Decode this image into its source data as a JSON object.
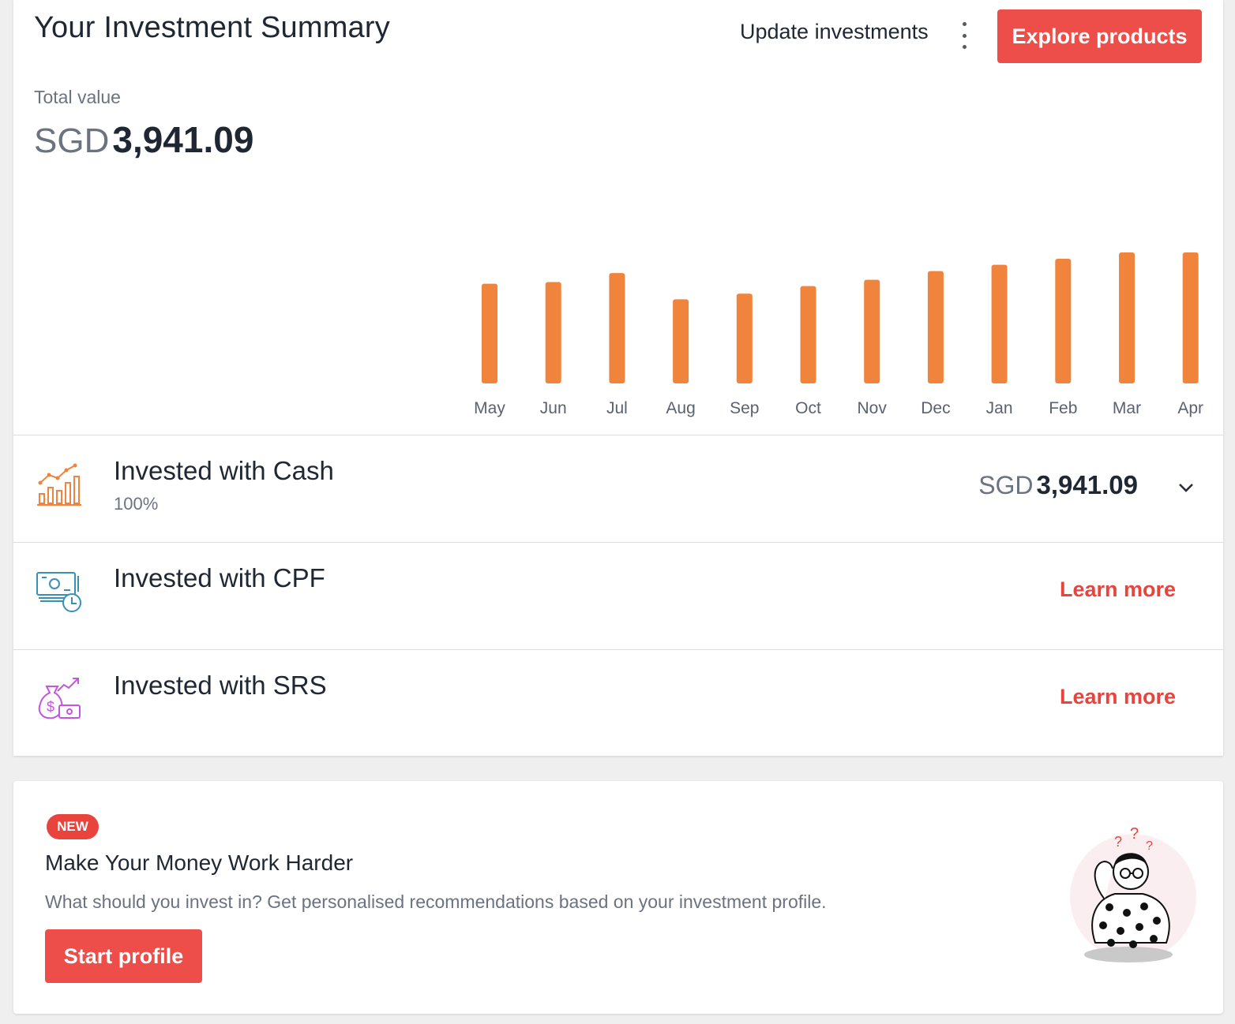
{
  "header": {
    "title": "Your Investment Summary",
    "update_label": "Update investments",
    "explore_label": "Explore products"
  },
  "total": {
    "label": "Total value",
    "currency": "SGD",
    "amount": "3,941.09"
  },
  "chart_data": {
    "type": "bar",
    "categories": [
      "May",
      "Jun",
      "Jul",
      "Aug",
      "Sep",
      "Oct",
      "Nov",
      "Dec",
      "Jan",
      "Feb",
      "Mar",
      "Apr"
    ],
    "values": [
      3000,
      3050,
      3320,
      2530,
      2700,
      2930,
      3120,
      3380,
      3570,
      3750,
      3941.09,
      3941.09
    ],
    "ylim": [
      0,
      3941.09
    ],
    "color": "#f0843c",
    "grid": false,
    "title": "",
    "xlabel": "",
    "ylabel": ""
  },
  "rows": {
    "cash": {
      "title": "Invested with Cash",
      "percent": "100%",
      "currency": "SGD",
      "amount": "3,941.09",
      "icon": "growth-chart-icon",
      "color": "#f0843c"
    },
    "cpf": {
      "title": "Invested with CPF",
      "link": "Learn more",
      "icon": "cash-clock-icon",
      "color": "#3a8fb7"
    },
    "srs": {
      "title": "Invested with SRS",
      "link": "Learn more",
      "icon": "money-bag-icon",
      "color": "#c455e0"
    }
  },
  "promo": {
    "badge": "NEW",
    "title": "Make Your Money Work Harder",
    "description": "What should you invest in? Get personalised recommendations based on your investment profile.",
    "button": "Start profile",
    "illustration": "thinking-person-illustration"
  },
  "colors": {
    "accent": "#ed4e49",
    "link": "#e8443d"
  }
}
